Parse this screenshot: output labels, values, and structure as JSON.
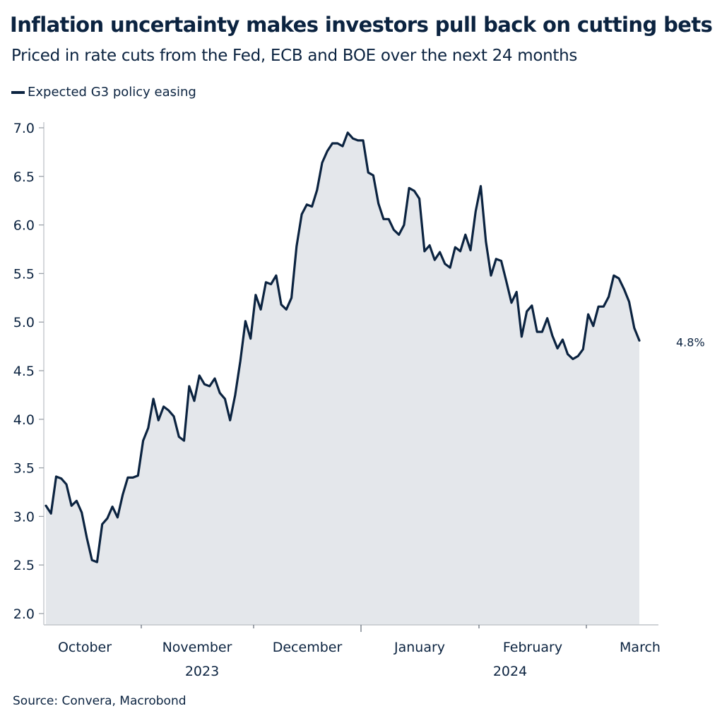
{
  "header": {
    "title": "Inflation uncertainty makes investors pull back on cutting bets",
    "subtitle": "Priced in rate cuts from the Fed, ECB and BOE over the next 24 months"
  },
  "footer": {
    "source": "Source: Convera, Macrobond"
  },
  "colors": {
    "line": "#0b2340",
    "area": "#e4e7eb",
    "axis": "#c8ccd1",
    "text": "#0b2340"
  },
  "chart_data": {
    "type": "area",
    "title": "Inflation uncertainty makes investors pull back on cutting bets",
    "subtitle": "Priced in rate cuts from the Fed, ECB and BOE over the next 24 months",
    "xlabel": "",
    "ylabel": "",
    "ylim": [
      2.0,
      7.0
    ],
    "yticks": [
      "2.0",
      "2.5",
      "3.0",
      "3.5",
      "4.0",
      "4.5",
      "5.0",
      "5.5",
      "6.0",
      "6.5",
      "7.0"
    ],
    "ytick_values": [
      2.0,
      2.5,
      3.0,
      3.5,
      4.0,
      4.5,
      5.0,
      5.5,
      6.0,
      6.5,
      7.0
    ],
    "grid": false,
    "legend": {
      "placement": "top-left",
      "entries": [
        "Expected G3 policy easing"
      ]
    },
    "x_range_days": [
      0,
      165
    ],
    "x_month_labels": [
      {
        "label": "October",
        "day": 15
      },
      {
        "label": "November",
        "day": 45.5
      },
      {
        "label": "December",
        "day": 76
      },
      {
        "label": "January",
        "day": 107
      },
      {
        "label": "February",
        "day": 137.5
      },
      {
        "label": "March",
        "day": 162
      }
    ],
    "x_year_labels": [
      {
        "label": "2023",
        "day": 45.5
      },
      {
        "label": "2024",
        "day": 137.5
      }
    ],
    "x_ticks_days": [
      31,
      61,
      92,
      123,
      152
    ],
    "x_year_tick_day": 92,
    "series": [
      {
        "name": "Expected G3 policy easing",
        "start_day": 3,
        "end_day": 162,
        "end_label": "4.8%",
        "values": [
          3.11,
          3.03,
          3.41,
          3.39,
          3.33,
          3.11,
          3.16,
          3.04,
          2.78,
          2.55,
          2.53,
          2.92,
          2.98,
          3.1,
          2.99,
          3.22,
          3.4,
          3.4,
          3.42,
          3.78,
          3.91,
          4.21,
          3.99,
          4.13,
          4.09,
          4.03,
          3.82,
          3.78,
          4.34,
          4.19,
          4.45,
          4.36,
          4.34,
          4.42,
          4.27,
          4.21,
          3.99,
          4.25,
          4.6,
          5.01,
          4.83,
          5.28,
          5.13,
          5.41,
          5.39,
          5.48,
          5.18,
          5.13,
          5.25,
          5.78,
          6.11,
          6.21,
          6.19,
          6.36,
          6.64,
          6.76,
          6.84,
          6.84,
          6.81,
          6.95,
          6.89,
          6.87,
          6.87,
          6.54,
          6.51,
          6.22,
          6.06,
          6.06,
          5.95,
          5.9,
          6.0,
          6.38,
          6.35,
          6.27,
          5.73,
          5.79,
          5.64,
          5.72,
          5.6,
          5.56,
          5.77,
          5.73,
          5.9,
          5.74,
          6.14,
          6.4,
          5.83,
          5.48,
          5.65,
          5.63,
          5.42,
          5.2,
          5.31,
          4.85,
          5.11,
          5.17,
          4.9,
          4.9,
          5.04,
          4.86,
          4.73,
          4.82,
          4.67,
          4.62,
          4.65,
          4.72,
          5.08,
          4.96,
          5.16,
          5.16,
          5.26,
          5.48,
          5.45,
          5.34,
          5.21,
          4.94,
          4.81
        ]
      }
    ]
  }
}
